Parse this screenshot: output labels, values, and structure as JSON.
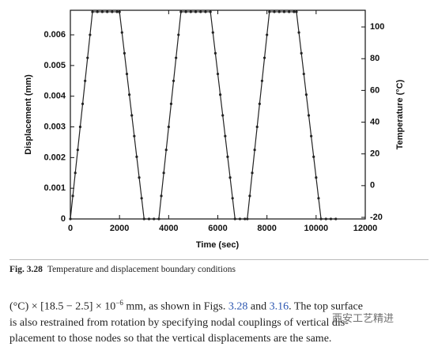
{
  "chart_data": {
    "type": "line",
    "xlabel": "Time (sec)",
    "ylabel": "Displacement (mm)",
    "y2label": "Temperature (°C)",
    "x": [
      0,
      100,
      200,
      300,
      400,
      500,
      600,
      700,
      800,
      900,
      1100,
      1300,
      1500,
      1700,
      1900,
      2000,
      2100,
      2200,
      2300,
      2400,
      2500,
      2600,
      2700,
      2800,
      2900,
      3000,
      3200,
      3400,
      3600,
      3700,
      3800,
      3900,
      4000,
      4100,
      4200,
      4300,
      4400,
      4500,
      4700,
      4900,
      5100,
      5300,
      5500,
      5700,
      5800,
      5900,
      6000,
      6100,
      6200,
      6300,
      6400,
      6500,
      6600,
      6700,
      6900,
      7100,
      7200,
      7300,
      7400,
      7500,
      7600,
      7700,
      7800,
      7900,
      8000,
      8100,
      8300,
      8500,
      8700,
      8900,
      9100,
      9200,
      9300,
      9400,
      9500,
      9600,
      9700,
      9800,
      9900,
      10000,
      10100,
      10200,
      10400,
      10600,
      10800
    ],
    "series": [
      {
        "color": "#222222",
        "values": [
          0,
          0.00075,
          0.0015,
          0.00225,
          0.003,
          0.00375,
          0.0045,
          0.00525,
          0.006,
          0.00675,
          0.00675,
          0.00675,
          0.00675,
          0.00675,
          0.00675,
          0.00675,
          0.006075,
          0.0054,
          0.004725,
          0.00405,
          0.003375,
          0.0027,
          0.002025,
          0.00135,
          0.000675,
          0,
          0,
          0,
          0,
          0.00075,
          0.0015,
          0.00225,
          0.003,
          0.00375,
          0.0045,
          0.00525,
          0.006,
          0.00675,
          0.00675,
          0.00675,
          0.00675,
          0.00675,
          0.00675,
          0.00675,
          0.006075,
          0.0054,
          0.004725,
          0.00405,
          0.003375,
          0.0027,
          0.002025,
          0.00135,
          0.000675,
          0,
          0,
          0,
          0,
          0.00075,
          0.0015,
          0.00225,
          0.003,
          0.00375,
          0.0045,
          0.00525,
          0.006,
          0.00675,
          0.00675,
          0.00675,
          0.00675,
          0.00675,
          0.00675,
          0.00675,
          0.006075,
          0.0054,
          0.004725,
          0.00405,
          0.003375,
          0.0027,
          0.002025,
          0.00135,
          0.000675,
          0,
          0,
          0,
          0
        ]
      }
    ],
    "xlim": [
      0,
      12000
    ],
    "xticks": [
      0,
      2000,
      4000,
      6000,
      8000,
      10000,
      12000
    ],
    "ylim": [
      0,
      0.0068
    ],
    "yticks": [
      0,
      0.001,
      0.002,
      0.003,
      0.004,
      0.005,
      0.006
    ],
    "y2lim": [
      -21,
      110.5
    ],
    "y2ticks": [
      -20,
      0,
      20,
      40,
      60,
      80,
      100
    ]
  },
  "caption": {
    "label": "Fig. 3.28",
    "text": "Temperature and displacement boundary conditions"
  },
  "body": {
    "line1": [
      "(°C) × [18.5 − 2.5] × 10",
      "−6",
      " mm, as shown in Figs. ",
      "3.28",
      " and ",
      "3.16",
      ". The top surface"
    ],
    "line2": "is also restrained from rotation by specifying nodal couplings of vertical dis-",
    "line3": "placement to those nodes so that the vertical displacements are the same.",
    "watermark": "西安工艺精进"
  }
}
